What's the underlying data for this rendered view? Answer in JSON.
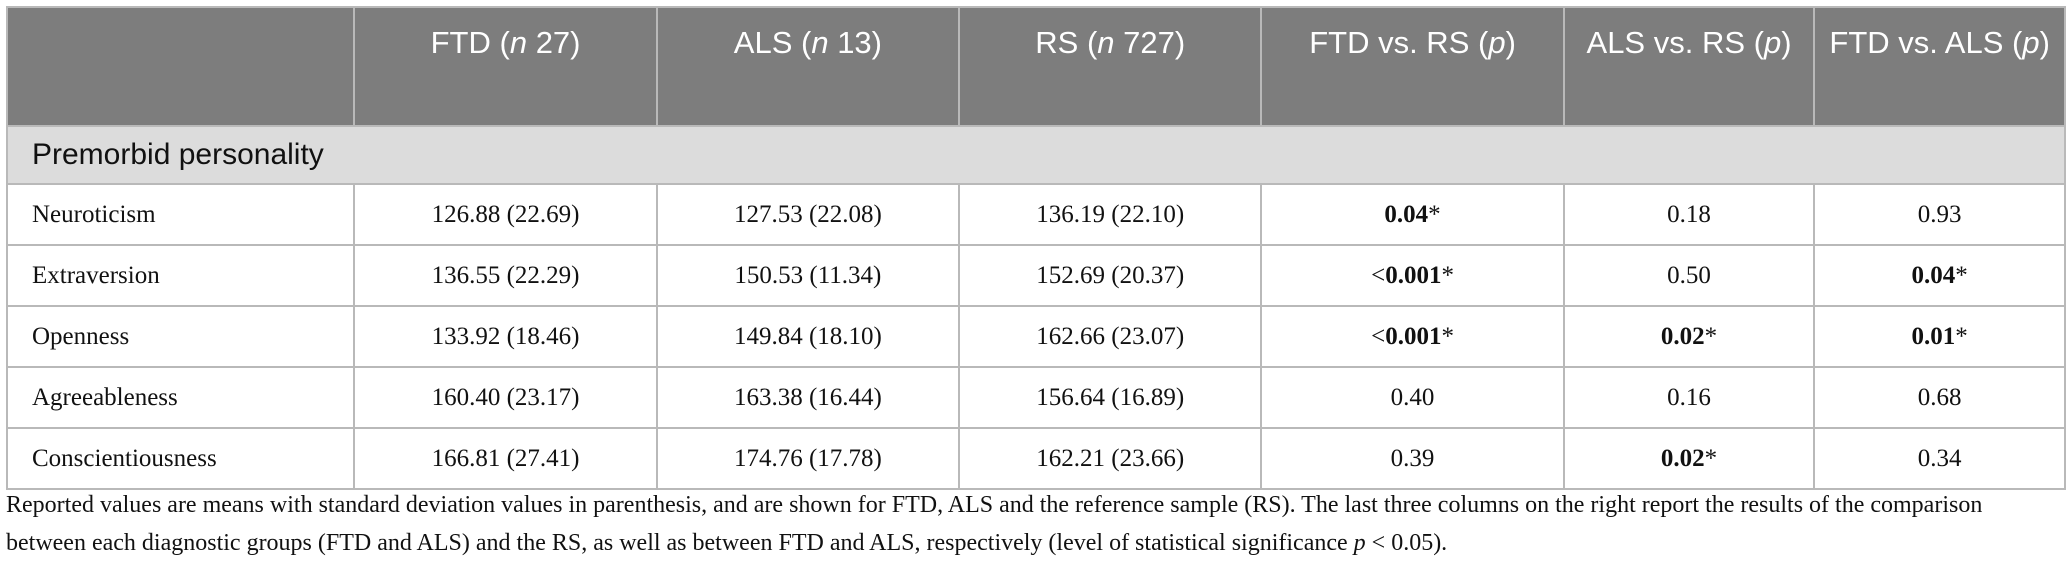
{
  "table": {
    "columns": [
      {
        "pre": "",
        "it": "",
        "post": ""
      },
      {
        "pre": "FTD (",
        "it": "n",
        "post": " 27)"
      },
      {
        "pre": "ALS (",
        "it": "n",
        "post": " 13)"
      },
      {
        "pre": "RS (",
        "it": "n",
        "post": " 727)"
      },
      {
        "pre": "FTD vs. RS (",
        "it": "p",
        "post": ")"
      },
      {
        "pre": "ALS vs. RS (",
        "it": "p",
        "post": ")"
      },
      {
        "pre": "FTD vs. ALS (",
        "it": "p",
        "post": ")"
      }
    ],
    "section_label": "Premorbid personality",
    "rows": [
      {
        "label": "Neuroticism",
        "cells": [
          {
            "pre": "",
            "bold": "",
            "post": "126.88 (22.69)"
          },
          {
            "pre": "",
            "bold": "",
            "post": "127.53 (22.08)"
          },
          {
            "pre": "",
            "bold": "",
            "post": "136.19 (22.10)"
          },
          {
            "pre": "",
            "bold": "0.04",
            "post": "*"
          },
          {
            "pre": "",
            "bold": "",
            "post": "0.18"
          },
          {
            "pre": "",
            "bold": "",
            "post": "0.93"
          }
        ]
      },
      {
        "label": "Extraversion",
        "cells": [
          {
            "pre": "",
            "bold": "",
            "post": "136.55 (22.29)"
          },
          {
            "pre": "",
            "bold": "",
            "post": "150.53 (11.34)"
          },
          {
            "pre": "",
            "bold": "",
            "post": "152.69 (20.37)"
          },
          {
            "pre": "<",
            "bold": "0.001",
            "post": "*"
          },
          {
            "pre": "",
            "bold": "",
            "post": "0.50"
          },
          {
            "pre": "",
            "bold": "0.04",
            "post": "*"
          }
        ]
      },
      {
        "label": "Openness",
        "cells": [
          {
            "pre": "",
            "bold": "",
            "post": "133.92 (18.46)"
          },
          {
            "pre": "",
            "bold": "",
            "post": "149.84 (18.10)"
          },
          {
            "pre": "",
            "bold": "",
            "post": "162.66 (23.07)"
          },
          {
            "pre": "<",
            "bold": "0.001",
            "post": "*"
          },
          {
            "pre": "",
            "bold": "0.02",
            "post": "*"
          },
          {
            "pre": "",
            "bold": "0.01",
            "post": "*"
          }
        ]
      },
      {
        "label": "Agreeableness",
        "cells": [
          {
            "pre": "",
            "bold": "",
            "post": "160.40 (23.17)"
          },
          {
            "pre": "",
            "bold": "",
            "post": "163.38 (16.44)"
          },
          {
            "pre": "",
            "bold": "",
            "post": "156.64 (16.89)"
          },
          {
            "pre": "",
            "bold": "",
            "post": "0.40"
          },
          {
            "pre": "",
            "bold": "",
            "post": "0.16"
          },
          {
            "pre": "",
            "bold": "",
            "post": "0.68"
          }
        ]
      },
      {
        "label": "Conscientiousness",
        "cells": [
          {
            "pre": "",
            "bold": "",
            "post": "166.81 (27.41)"
          },
          {
            "pre": "",
            "bold": "",
            "post": "174.76 (17.78)"
          },
          {
            "pre": "",
            "bold": "",
            "post": "162.21 (23.66)"
          },
          {
            "pre": "",
            "bold": "",
            "post": "0.39"
          },
          {
            "pre": "",
            "bold": "0.02",
            "post": "*"
          },
          {
            "pre": "",
            "bold": "",
            "post": "0.34"
          }
        ]
      }
    ]
  },
  "note": {
    "text1": "Reported values are means with standard deviation values in parenthesis, and are shown for FTD, ALS and the reference sample (RS). The last three columns on the right report the results of the comparison between each diagnostic groups (FTD and ALS) and the RS, as well as between FTD and ALS, respectively (level of statistical significance ",
    "italic": "p",
    "text2": " < 0.05)."
  }
}
